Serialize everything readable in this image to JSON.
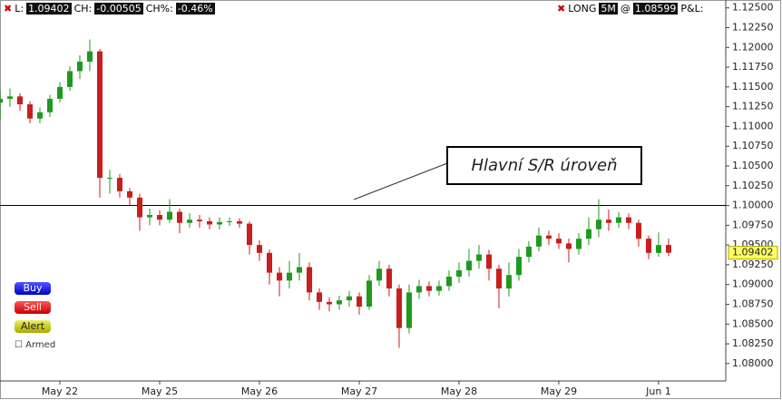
{
  "header": {
    "left": [
      "L:",
      "1.09402",
      "CH:",
      "-0.00505",
      "CH%:",
      "-0.46%"
    ],
    "right": [
      "LONG",
      "5M",
      "@",
      "1.08599",
      "P&L:"
    ]
  },
  "controls": {
    "buy": "Buy",
    "sell": "Sell",
    "alert": "Alert",
    "armed": "Armed"
  },
  "chart_data": {
    "type": "candlestick",
    "x": [
      -0.6,
      -0.5,
      -0.4,
      -0.3,
      -0.2,
      -0.1,
      0,
      0.1,
      0.2,
      0.3,
      0.4,
      0.5,
      0.6,
      0.7,
      0.8,
      0.9,
      1,
      1.1,
      1.2,
      1.3,
      1.4,
      1.5,
      1.6,
      1.7,
      1.8,
      1.9,
      2,
      2.1,
      2.2,
      2.3,
      2.4,
      2.5,
      2.6,
      2.7,
      2.8,
      2.9,
      3,
      3.1,
      3.2,
      3.3,
      3.4,
      3.5,
      3.6,
      3.7,
      3.8,
      3.9,
      4,
      4.1,
      4.2,
      4.3,
      4.4,
      4.5,
      4.6,
      4.7,
      4.8,
      4.9,
      5,
      5.1,
      5.2,
      5.3,
      5.4,
      5.5,
      5.6,
      5.7,
      5.8,
      5.9,
      6,
      6.1
    ],
    "open": [
      1.113,
      1.1135,
      1.1138,
      1.1128,
      1.111,
      1.1118,
      1.1135,
      1.115,
      1.117,
      1.1182,
      1.1195,
      1.1035,
      1.1035,
      1.1018,
      1.101,
      1.0985,
      1.0988,
      1.0982,
      1.0992,
      1.0978,
      1.0982,
      1.098,
      1.0976,
      1.0979,
      1.098,
      1.0977,
      1.095,
      1.094,
      1.0915,
      1.0905,
      1.0915,
      1.0922,
      1.089,
      1.0878,
      1.0875,
      1.088,
      1.0885,
      1.0872,
      1.0905,
      1.092,
      1.0895,
      1.0845,
      1.089,
      1.0898,
      1.0892,
      1.0898,
      1.091,
      1.0918,
      1.093,
      1.0938,
      1.092,
      1.0895,
      1.0912,
      1.0935,
      1.0948,
      1.0962,
      1.0958,
      1.0952,
      1.0945,
      1.0958,
      1.097,
      1.0982,
      1.0978,
      1.0985,
      1.0978,
      1.0958,
      1.094,
      1.095
    ],
    "high": [
      1.1145,
      1.1148,
      1.1142,
      1.1132,
      1.1124,
      1.114,
      1.1156,
      1.1176,
      1.119,
      1.121,
      1.1198,
      1.1045,
      1.104,
      1.1022,
      1.1015,
      1.0996,
      1.0994,
      1.1008,
      1.0996,
      1.099,
      1.0988,
      1.0985,
      1.0985,
      1.0985,
      1.0984,
      1.098,
      1.0956,
      1.0944,
      1.0922,
      1.093,
      1.094,
      1.0928,
      1.0895,
      1.0884,
      1.0886,
      1.0892,
      1.089,
      1.0912,
      1.093,
      1.0925,
      1.09,
      1.09,
      1.0906,
      1.0904,
      1.0905,
      1.0918,
      1.0928,
      1.0945,
      1.095,
      1.0944,
      1.0925,
      1.0928,
      1.0945,
      1.0955,
      1.0972,
      1.0968,
      1.0965,
      1.0958,
      1.0965,
      1.0985,
      1.1008,
      1.0995,
      1.0992,
      1.099,
      1.0982,
      1.0962,
      1.0966,
      1.0958
    ],
    "low": [
      1.1108,
      1.1125,
      1.112,
      1.1104,
      1.1104,
      1.1112,
      1.113,
      1.1145,
      1.116,
      1.117,
      1.101,
      1.1015,
      1.101,
      1.1,
      1.0968,
      1.0975,
      1.0975,
      1.0978,
      1.0965,
      1.0972,
      1.0972,
      1.097,
      1.097,
      1.0974,
      1.0972,
      1.0938,
      1.093,
      1.09,
      1.0885,
      1.0895,
      1.0905,
      1.088,
      1.0868,
      1.0866,
      1.0868,
      1.0872,
      1.0862,
      1.0868,
      1.0898,
      1.0885,
      1.082,
      1.0838,
      1.0882,
      1.0885,
      1.0886,
      1.0892,
      1.0902,
      1.091,
      1.092,
      1.0905,
      1.087,
      1.0885,
      1.0905,
      1.0928,
      1.0942,
      1.095,
      1.0945,
      1.0928,
      1.0938,
      1.095,
      1.096,
      1.0968,
      1.0972,
      1.097,
      1.0948,
      1.0932,
      1.0935,
      1.0936
    ],
    "close": [
      1.1135,
      1.1138,
      1.1128,
      1.111,
      1.1118,
      1.1135,
      1.115,
      1.117,
      1.1182,
      1.1195,
      1.1035,
      1.1035,
      1.1018,
      1.101,
      1.0985,
      1.0988,
      1.0982,
      1.0992,
      1.0978,
      1.0982,
      1.098,
      1.0976,
      1.0979,
      1.098,
      1.0977,
      1.095,
      1.094,
      1.0915,
      1.0905,
      1.0915,
      1.0922,
      1.089,
      1.0878,
      1.0875,
      1.088,
      1.0885,
      1.0872,
      1.0905,
      1.092,
      1.0895,
      1.0845,
      1.089,
      1.0898,
      1.0892,
      1.0898,
      1.091,
      1.0918,
      1.093,
      1.0938,
      1.092,
      1.0895,
      1.0912,
      1.0935,
      1.0948,
      1.0962,
      1.0958,
      1.0952,
      1.0945,
      1.0958,
      1.097,
      1.0982,
      1.0978,
      1.0985,
      1.0978,
      1.0958,
      1.094,
      1.095,
      1.09402
    ],
    "up_color": "#1f9a1f",
    "down_color": "#c81e1e",
    "xlim": [
      -0.6,
      6.673
    ],
    "ylim": [
      1.0778,
      1.126
    ],
    "xticks": [
      {
        "value": 0,
        "label": "May 22"
      },
      {
        "value": 1,
        "label": "May 25"
      },
      {
        "value": 2,
        "label": "May 26"
      },
      {
        "value": 3,
        "label": "May 27"
      },
      {
        "value": 4,
        "label": "May 28"
      },
      {
        "value": 5,
        "label": "May 29"
      },
      {
        "value": 6,
        "label": "Jun 1"
      }
    ],
    "yticks": [
      {
        "value": 1.08,
        "label": "1.08000"
      },
      {
        "value": 1.0825,
        "label": "1.08250"
      },
      {
        "value": 1.085,
        "label": "1.08500"
      },
      {
        "value": 1.0875,
        "label": "1.08750"
      },
      {
        "value": 1.09,
        "label": "1.09000"
      },
      {
        "value": 1.0925,
        "label": "1.09250"
      },
      {
        "value": 1.095,
        "label": "1.09500"
      },
      {
        "value": 1.0975,
        "label": "1.09750"
      },
      {
        "value": 1.1,
        "label": "1.10000"
      },
      {
        "value": 1.1025,
        "label": "1.10250"
      },
      {
        "value": 1.105,
        "label": "1.10500"
      },
      {
        "value": 1.1075,
        "label": "1.10750"
      },
      {
        "value": 1.11,
        "label": "1.11000"
      },
      {
        "value": 1.1125,
        "label": "1.11250"
      },
      {
        "value": 1.115,
        "label": "1.11500"
      },
      {
        "value": 1.1175,
        "label": "1.11750"
      },
      {
        "value": 1.12,
        "label": "1.12000"
      },
      {
        "value": 1.1225,
        "label": "1.12250"
      },
      {
        "value": 1.125,
        "label": "1.12500"
      }
    ],
    "hline": 1.1,
    "annotation": "Hlavní S/R úroveň"
  }
}
